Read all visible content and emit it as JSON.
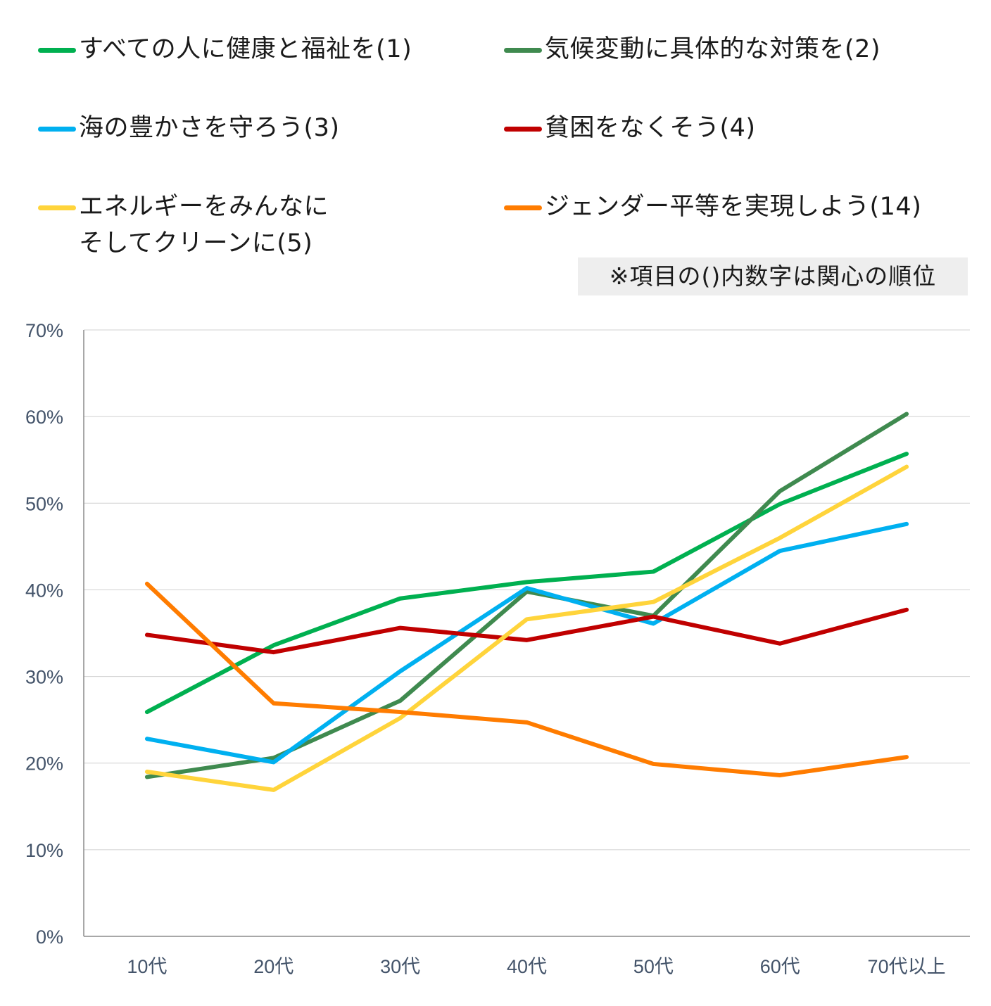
{
  "legend": {
    "items": [
      {
        "label": "すべての人に健康と福祉を(1)",
        "color": "#00b050"
      },
      {
        "label": "気候変動に具体的な対策を(2)",
        "color": "#3f8a4f"
      },
      {
        "label": "海の豊かさを守ろう(3)",
        "color": "#00b0f0"
      },
      {
        "label": "貧困をなくそう(4)",
        "color": "#c00000"
      },
      {
        "label": "エネルギーをみんなに\nそしてクリーンに(5)",
        "color": "#ffd43b"
      },
      {
        "label": "ジェンダー平等を実現しよう(14)",
        "color": "#ff7c00"
      }
    ]
  },
  "note": "※項目の()内数字は関心の順位",
  "chart_data": {
    "type": "line",
    "categories": [
      "10代",
      "20代",
      "30代",
      "40代",
      "50代",
      "60代",
      "70代以上"
    ],
    "y_ticks": [
      "0%",
      "10%",
      "20%",
      "30%",
      "40%",
      "50%",
      "60%",
      "70%"
    ],
    "ylim": [
      0,
      70
    ],
    "grid": true,
    "legend_position": "top",
    "series": [
      {
        "name": "すべての人に健康と福祉を(1)",
        "color": "#00b050",
        "values": [
          25.9,
          33.6,
          39.0,
          40.9,
          42.1,
          49.9,
          55.7
        ]
      },
      {
        "name": "気候変動に具体的な対策を(2)",
        "color": "#3f8a4f",
        "values": [
          18.4,
          20.6,
          27.2,
          39.8,
          37.0,
          51.4,
          60.3
        ]
      },
      {
        "name": "海の豊かさを守ろう(3)",
        "color": "#00b0f0",
        "values": [
          22.8,
          20.1,
          30.6,
          40.2,
          36.1,
          44.5,
          47.6
        ]
      },
      {
        "name": "貧困をなくそう(4)",
        "color": "#c00000",
        "values": [
          34.8,
          32.8,
          35.6,
          34.2,
          36.9,
          33.8,
          37.7
        ]
      },
      {
        "name": "エネルギーをみんなにそしてクリーンに(5)",
        "color": "#ffd43b",
        "values": [
          19.0,
          16.9,
          25.2,
          36.6,
          38.6,
          46.0,
          54.2
        ]
      },
      {
        "name": "ジェンダー平等を実現しよう(14)",
        "color": "#ff7c00",
        "values": [
          40.7,
          26.9,
          25.9,
          24.7,
          19.9,
          18.6,
          20.7
        ]
      }
    ]
  }
}
